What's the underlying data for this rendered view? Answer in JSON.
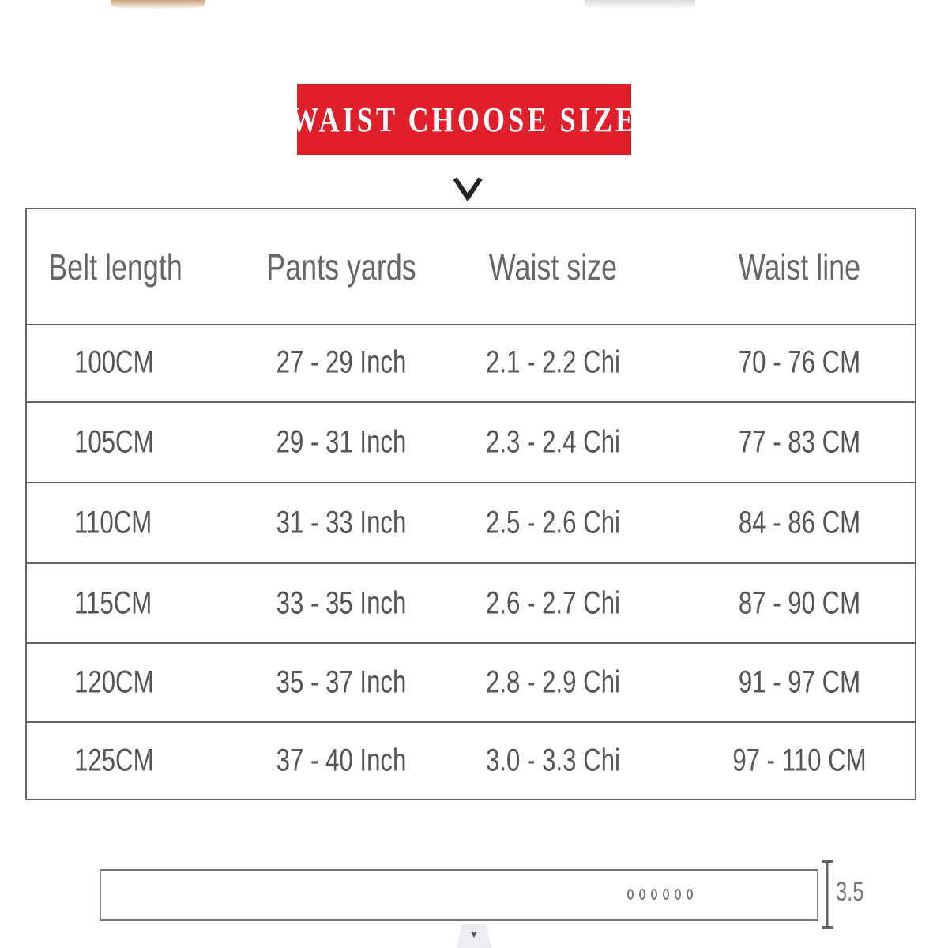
{
  "banner": {
    "title": "WAIST CHOOSE SIZE",
    "color": "#e01f2a"
  },
  "table": {
    "headers": [
      "Belt length",
      "Pants yards",
      "Waist size",
      "Waist line"
    ],
    "rows": [
      [
        "100CM",
        "27 - 29 Inch",
        "2.1 - 2.2 Chi",
        "70 - 76 CM"
      ],
      [
        "105CM",
        "29 - 31 Inch",
        "2.3 - 2.4 Chi",
        "77 - 83 CM"
      ],
      [
        "110CM",
        "31 - 33 Inch",
        "2.5 - 2.6 Chi",
        "84 - 86 CM"
      ],
      [
        "115CM",
        "33 - 35 Inch",
        "2.6 - 2.7 Chi",
        "87 - 90 CM"
      ],
      [
        "120CM",
        "35 - 37 Inch",
        "2.8 - 2.9 Chi",
        "91 - 97 CM"
      ],
      [
        "125CM",
        "37 - 40 Inch",
        "3.0 - 3.3 Chi",
        "97 - 110 CM"
      ]
    ]
  },
  "belt_diagram": {
    "width_label": "3.5",
    "hole_count": 6
  }
}
